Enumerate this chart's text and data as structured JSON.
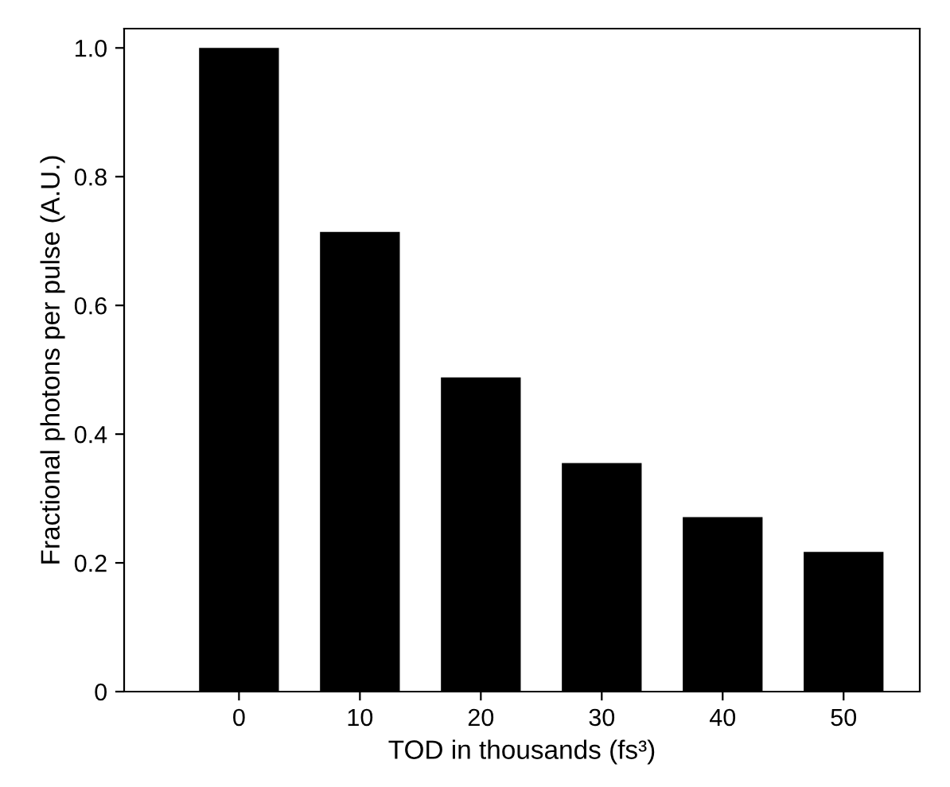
{
  "chart_data": {
    "type": "bar",
    "xlabel": "TOD in thousands (fs³)",
    "ylabel": "Fractional photons per pulse (A.U.)",
    "categories": [
      "0",
      "10",
      "20",
      "30",
      "40",
      "50"
    ],
    "values": [
      1.0,
      0.714,
      0.488,
      0.355,
      0.271,
      0.217
    ],
    "color": "#000000",
    "ylim": [
      0,
      1.03
    ],
    "yticks": [
      {
        "value": 0,
        "label": "0"
      },
      0.2,
      0.4,
      0.6,
      0.8,
      {
        "value": 1.0,
        "label": "1.0"
      }
    ],
    "grid": false,
    "legend": false
  }
}
